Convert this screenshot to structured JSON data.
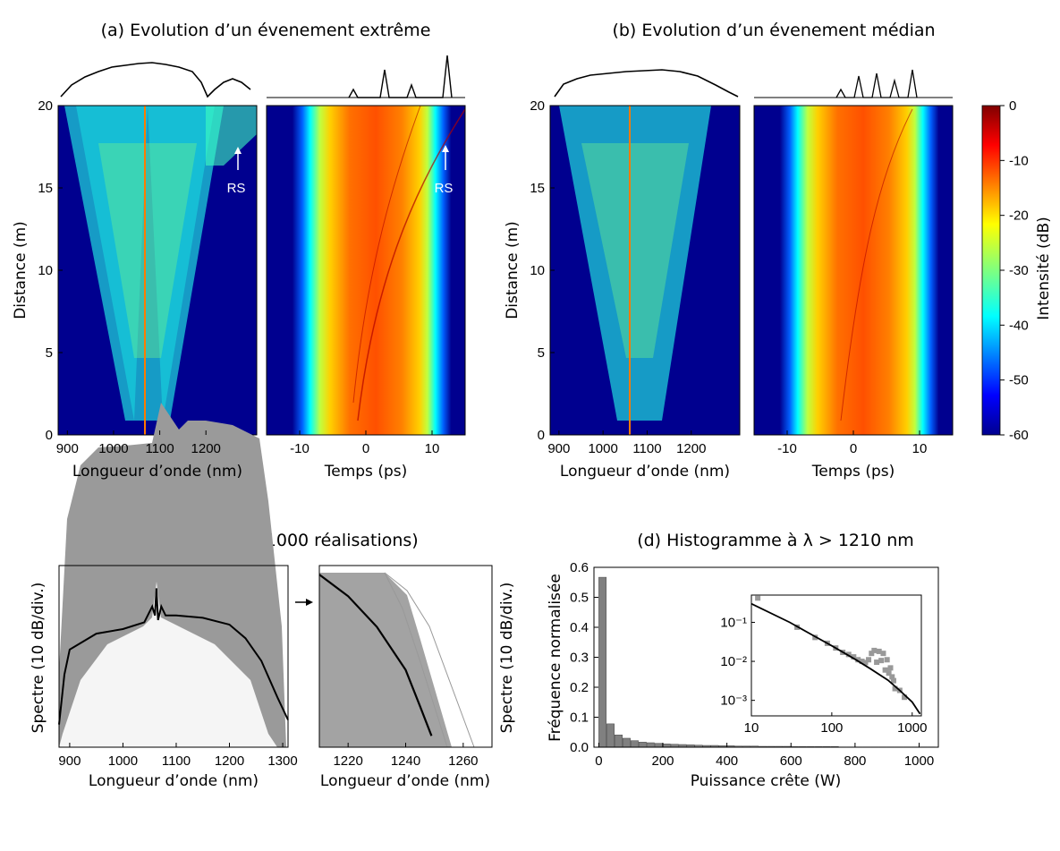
{
  "panels": {
    "a_title": "(a) Evolution d’un évenement extrême",
    "b_title": "(b) Evolution d’un évenement médian",
    "c_title": "(c) Spectre final (1000 réalisations)",
    "d_title": "(d) Histogramme à λ > 1210 nm",
    "annotation_rs": "RS"
  },
  "colors": {
    "map_low": "#00008f",
    "map_high": "#800000",
    "gray_mark": "#999999",
    "bar": "#808080",
    "line": "#000000"
  },
  "chart_data": [
    {
      "id": "a-spectral",
      "type": "heatmap",
      "xlabel": "Longueur d’onde (nm)",
      "ylabel": "Distance (m)",
      "xlim": [
        880,
        1310
      ],
      "ylim": [
        0,
        20
      ],
      "xticks": [
        900,
        1000,
        1100,
        1200
      ],
      "yticks": [
        0,
        5,
        10,
        15,
        20
      ],
      "annotation": "RS",
      "color_scale": [
        -60,
        0
      ],
      "profile_on_top": true
    },
    {
      "id": "a-temporal",
      "type": "heatmap",
      "xlabel": "Temps (ps)",
      "xlim": [
        -15,
        15
      ],
      "ylim": [
        0,
        20
      ],
      "xticks": [
        -10,
        0,
        10
      ],
      "annotation": "RS",
      "color_scale": [
        -60,
        0
      ],
      "profile_on_top": true
    },
    {
      "id": "b-spectral",
      "type": "heatmap",
      "xlabel": "Longueur d’onde (nm)",
      "ylabel": "Distance (m)",
      "xlim": [
        880,
        1310
      ],
      "ylim": [
        0,
        20
      ],
      "xticks": [
        900,
        1000,
        1100,
        1200
      ],
      "yticks": [
        0,
        5,
        10,
        15,
        20
      ],
      "color_scale": [
        -60,
        0
      ],
      "profile_on_top": true
    },
    {
      "id": "b-temporal",
      "type": "heatmap",
      "xlabel": "Temps (ps)",
      "xlim": [
        -15,
        15
      ],
      "ylim": [
        0,
        20
      ],
      "xticks": [
        -10,
        0,
        10
      ],
      "color_scale": [
        -60,
        0
      ],
      "profile_on_top": true
    },
    {
      "id": "colorbar",
      "type": "heatmap",
      "label": "Intensité (dB)",
      "range": [
        -60,
        0
      ],
      "ticks": [
        0,
        -10,
        -20,
        -30,
        -40,
        -50,
        -60
      ]
    },
    {
      "id": "c-full",
      "type": "line",
      "xlabel": "Longueur d’onde (nm)",
      "ylabel": "Spectre (10 dB/div.)",
      "xlim": [
        880,
        1310
      ],
      "xticks": [
        900,
        1000,
        1100,
        1200,
        1300
      ],
      "series": [
        {
          "name": "",
          "role": "realisations",
          "count": 1000
        },
        {
          "name": "",
          "role": "mean",
          "x": [
            880,
            890,
            900,
            950,
            1000,
            1040,
            1055,
            1060,
            1063,
            1066,
            1072,
            1080,
            1100,
            1150,
            1200,
            1230,
            1260,
            1290,
            1310
          ],
          "y": [
            -90,
            -68,
            -57,
            -50,
            -48,
            -45,
            -38,
            -42,
            -30,
            -44,
            -38,
            -42,
            -42,
            -43,
            -46,
            -52,
            -62,
            -78,
            -88
          ]
        }
      ]
    },
    {
      "id": "c-zoom",
      "type": "line",
      "xlabel": "Longueur d’onde (nm)",
      "ylabel": "Spectre (10 dB/div.)",
      "xlim": [
        1210,
        1270
      ],
      "xticks": [
        1220,
        1240,
        1260
      ],
      "series": [
        {
          "name": "",
          "role": "mean",
          "x": [
            1210,
            1220,
            1230,
            1240,
            1245,
            1249
          ],
          "y": [
            -4,
            -13.5,
            -27,
            -46,
            -62,
            -75
          ]
        }
      ]
    },
    {
      "id": "d-histogram",
      "type": "bar",
      "xlabel": "Puissance crête (W)",
      "ylabel": "Fréquence normalisée",
      "xlim": [
        -15,
        1060
      ],
      "ylim": [
        0,
        0.6
      ],
      "xticks": [
        0,
        200,
        400,
        600,
        800,
        1000
      ],
      "yticks": [
        0.0,
        0.1,
        0.2,
        0.3,
        0.4,
        0.5,
        0.6
      ],
      "bin_width": 25,
      "bin_starts": [
        0,
        25,
        50,
        75,
        100,
        125,
        150,
        175,
        200,
        225,
        250,
        275,
        300,
        325,
        350,
        375,
        400,
        425,
        450,
        475,
        500,
        525,
        550,
        575,
        600,
        625,
        650,
        675,
        700,
        725,
        750,
        775,
        800,
        825,
        850,
        875,
        900,
        925,
        950,
        975,
        1000,
        1025
      ],
      "values": [
        0.567,
        0.078,
        0.041,
        0.03,
        0.022,
        0.017,
        0.015,
        0.013,
        0.011,
        0.01,
        0.009,
        0.008,
        0.007,
        0.006,
        0.006,
        0.005,
        0.005,
        0.004,
        0.004,
        0.004,
        0.003,
        0.003,
        0.003,
        0.003,
        0.002,
        0.002,
        0.002,
        0.002,
        0.002,
        0.002,
        0.001,
        0.001,
        0.001,
        0.001,
        0.001,
        0.001,
        0.001,
        0.001,
        0.001,
        0.001,
        0.001,
        0.001
      ]
    },
    {
      "id": "d-inset",
      "type": "scatter",
      "scale": "log-log",
      "xlim": [
        10,
        1300
      ],
      "ylim": [
        0.0004,
        0.5
      ],
      "xticks": [
        10,
        100,
        1000
      ],
      "yticks": [
        0.1,
        0.01,
        0.001
      ],
      "ytick_labels": [
        "10⁻¹",
        "10⁻²",
        "10⁻³"
      ],
      "points": {
        "x": [
          12,
          37,
          62,
          88,
          112,
          137,
          162,
          187,
          212,
          237,
          262,
          287,
          312,
          337,
          362,
          387,
          412,
          437,
          462,
          487,
          512,
          537,
          562,
          587,
          612,
          700,
          800
        ],
        "y": [
          0.42,
          0.075,
          0.041,
          0.029,
          0.022,
          0.017,
          0.015,
          0.013,
          0.011,
          0.01,
          0.0093,
          0.011,
          0.016,
          0.019,
          0.0095,
          0.018,
          0.0105,
          0.016,
          0.006,
          0.011,
          0.005,
          0.0068,
          0.004,
          0.0032,
          0.002,
          0.0018,
          0.0012
        ]
      },
      "fit": {
        "x": [
          10,
          30,
          60,
          100,
          200,
          300,
          500,
          700,
          1000,
          1250
        ],
        "y": [
          0.3,
          0.1,
          0.045,
          0.025,
          0.011,
          0.0065,
          0.0033,
          0.0018,
          0.0009,
          0.00045
        ]
      }
    }
  ]
}
